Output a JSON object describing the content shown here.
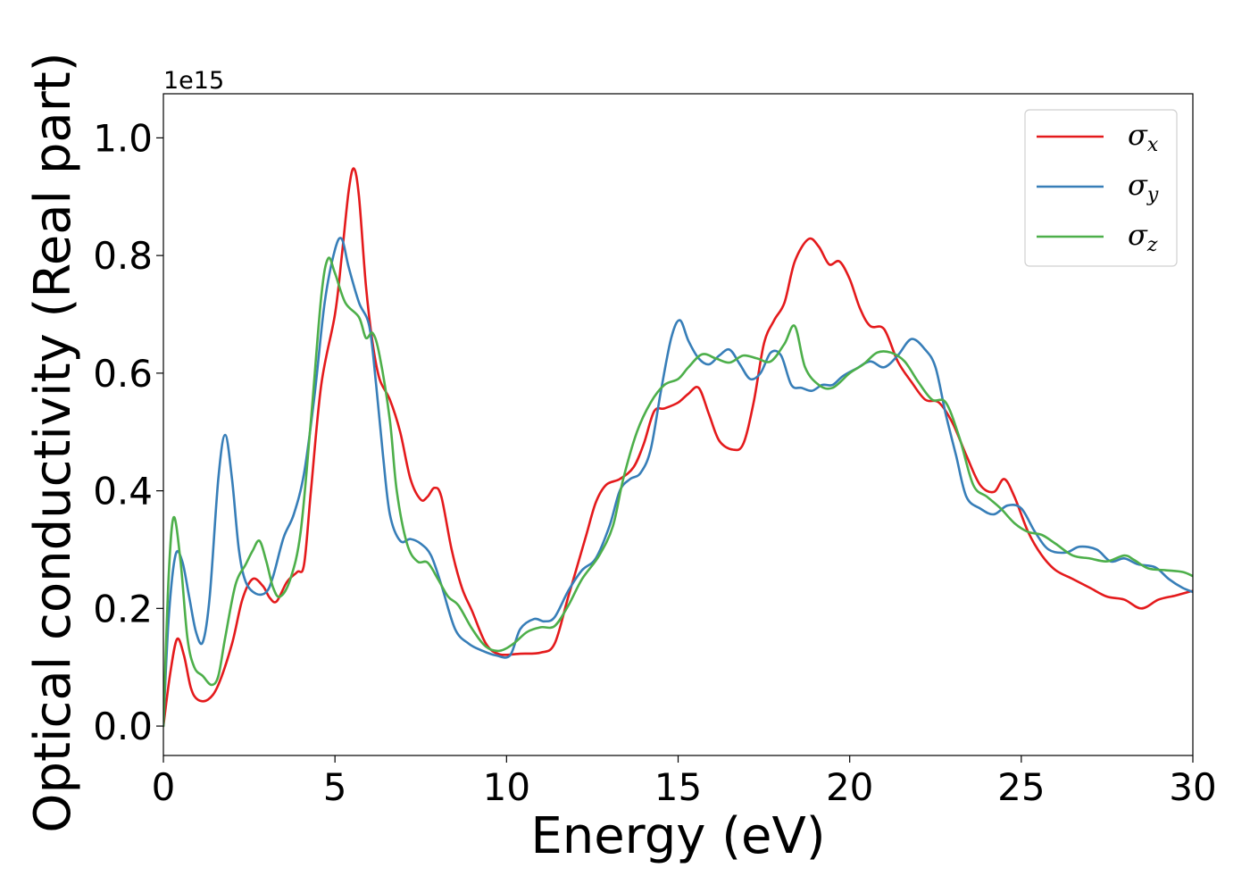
{
  "chart_data": {
    "type": "line",
    "xlabel": "Energy (eV)",
    "ylabel": "Optical conductivity (Real part)",
    "y_offset_label": "1e15",
    "xlim": [
      0,
      30
    ],
    "ylim": [
      -0.05,
      1.075
    ],
    "x_ticks": [
      0,
      5,
      10,
      15,
      20,
      25,
      30
    ],
    "x_tick_labels": [
      "0",
      "5",
      "10",
      "15",
      "20",
      "25",
      "30"
    ],
    "y_ticks": [
      0.0,
      0.2,
      0.4,
      0.6,
      0.8,
      1.0
    ],
    "y_tick_labels": [
      "0.0",
      "0.2",
      "0.4",
      "0.6",
      "0.8",
      "1.0"
    ],
    "grid": false,
    "legend_position": "top-right",
    "series": [
      {
        "name": "σx",
        "symbol": "σ",
        "sub": "x",
        "color": "#e41a1c",
        "points": [
          [
            0,
            0
          ],
          [
            0.2,
            0.09
          ],
          [
            0.4,
            0.148
          ],
          [
            0.6,
            0.12
          ],
          [
            0.8,
            0.065
          ],
          [
            1.0,
            0.045
          ],
          [
            1.3,
            0.045
          ],
          [
            1.6,
            0.07
          ],
          [
            2.0,
            0.14
          ],
          [
            2.3,
            0.215
          ],
          [
            2.6,
            0.25
          ],
          [
            2.9,
            0.238
          ],
          [
            3.1,
            0.218
          ],
          [
            3.3,
            0.212
          ],
          [
            3.6,
            0.245
          ],
          [
            3.9,
            0.262
          ],
          [
            4.1,
            0.275
          ],
          [
            4.3,
            0.4
          ],
          [
            4.6,
            0.58
          ],
          [
            5.0,
            0.7
          ],
          [
            5.2,
            0.8
          ],
          [
            5.4,
            0.91
          ],
          [
            5.55,
            0.948
          ],
          [
            5.7,
            0.9
          ],
          [
            5.9,
            0.75
          ],
          [
            6.1,
            0.65
          ],
          [
            6.3,
            0.59
          ],
          [
            6.6,
            0.555
          ],
          [
            6.9,
            0.5
          ],
          [
            7.2,
            0.42
          ],
          [
            7.5,
            0.385
          ],
          [
            7.7,
            0.39
          ],
          [
            7.9,
            0.405
          ],
          [
            8.1,
            0.39
          ],
          [
            8.4,
            0.3
          ],
          [
            8.7,
            0.235
          ],
          [
            9.0,
            0.195
          ],
          [
            9.4,
            0.14
          ],
          [
            9.8,
            0.122
          ],
          [
            10.4,
            0.123
          ],
          [
            11.0,
            0.125
          ],
          [
            11.4,
            0.14
          ],
          [
            11.8,
            0.22
          ],
          [
            12.3,
            0.32
          ],
          [
            12.6,
            0.38
          ],
          [
            12.9,
            0.41
          ],
          [
            13.3,
            0.42
          ],
          [
            13.7,
            0.44
          ],
          [
            14.0,
            0.48
          ],
          [
            14.3,
            0.535
          ],
          [
            14.6,
            0.54
          ],
          [
            15.0,
            0.55
          ],
          [
            15.3,
            0.565
          ],
          [
            15.6,
            0.575
          ],
          [
            15.9,
            0.53
          ],
          [
            16.2,
            0.485
          ],
          [
            16.6,
            0.47
          ],
          [
            16.9,
            0.48
          ],
          [
            17.2,
            0.55
          ],
          [
            17.5,
            0.65
          ],
          [
            17.8,
            0.69
          ],
          [
            18.1,
            0.72
          ],
          [
            18.4,
            0.79
          ],
          [
            18.8,
            0.828
          ],
          [
            19.1,
            0.815
          ],
          [
            19.4,
            0.785
          ],
          [
            19.7,
            0.79
          ],
          [
            20.0,
            0.76
          ],
          [
            20.3,
            0.71
          ],
          [
            20.6,
            0.68
          ],
          [
            21.0,
            0.675
          ],
          [
            21.4,
            0.62
          ],
          [
            21.8,
            0.585
          ],
          [
            22.2,
            0.555
          ],
          [
            22.6,
            0.55
          ],
          [
            23.0,
            0.515
          ],
          [
            23.4,
            0.46
          ],
          [
            23.8,
            0.41
          ],
          [
            24.2,
            0.398
          ],
          [
            24.5,
            0.42
          ],
          [
            24.8,
            0.39
          ],
          [
            25.2,
            0.33
          ],
          [
            25.6,
            0.29
          ],
          [
            26.0,
            0.265
          ],
          [
            26.5,
            0.25
          ],
          [
            27.0,
            0.235
          ],
          [
            27.5,
            0.22
          ],
          [
            28.0,
            0.215
          ],
          [
            28.5,
            0.2
          ],
          [
            29.0,
            0.215
          ],
          [
            29.5,
            0.222
          ],
          [
            30.0,
            0.23
          ]
        ]
      },
      {
        "name": "σy",
        "symbol": "σ",
        "sub": "y",
        "color": "#377eb8",
        "points": [
          [
            0,
            0
          ],
          [
            0.15,
            0.18
          ],
          [
            0.35,
            0.29
          ],
          [
            0.55,
            0.28
          ],
          [
            0.75,
            0.22
          ],
          [
            0.95,
            0.16
          ],
          [
            1.15,
            0.143
          ],
          [
            1.35,
            0.22
          ],
          [
            1.6,
            0.42
          ],
          [
            1.8,
            0.495
          ],
          [
            2.0,
            0.42
          ],
          [
            2.2,
            0.3
          ],
          [
            2.4,
            0.245
          ],
          [
            2.7,
            0.225
          ],
          [
            3.0,
            0.228
          ],
          [
            3.2,
            0.255
          ],
          [
            3.5,
            0.32
          ],
          [
            3.8,
            0.36
          ],
          [
            4.1,
            0.43
          ],
          [
            4.4,
            0.56
          ],
          [
            4.7,
            0.72
          ],
          [
            5.0,
            0.81
          ],
          [
            5.2,
            0.828
          ],
          [
            5.4,
            0.78
          ],
          [
            5.7,
            0.72
          ],
          [
            6.0,
            0.68
          ],
          [
            6.2,
            0.58
          ],
          [
            6.4,
            0.46
          ],
          [
            6.6,
            0.36
          ],
          [
            6.9,
            0.315
          ],
          [
            7.2,
            0.318
          ],
          [
            7.5,
            0.31
          ],
          [
            7.8,
            0.29
          ],
          [
            8.1,
            0.24
          ],
          [
            8.5,
            0.165
          ],
          [
            8.9,
            0.14
          ],
          [
            9.3,
            0.128
          ],
          [
            9.7,
            0.12
          ],
          [
            10.1,
            0.12
          ],
          [
            10.4,
            0.165
          ],
          [
            10.8,
            0.182
          ],
          [
            11.1,
            0.178
          ],
          [
            11.4,
            0.185
          ],
          [
            11.8,
            0.23
          ],
          [
            12.2,
            0.265
          ],
          [
            12.6,
            0.285
          ],
          [
            13.0,
            0.34
          ],
          [
            13.3,
            0.4
          ],
          [
            13.6,
            0.42
          ],
          [
            13.9,
            0.43
          ],
          [
            14.2,
            0.47
          ],
          [
            14.5,
            0.57
          ],
          [
            14.8,
            0.66
          ],
          [
            15.05,
            0.69
          ],
          [
            15.3,
            0.655
          ],
          [
            15.6,
            0.625
          ],
          [
            15.9,
            0.615
          ],
          [
            16.2,
            0.63
          ],
          [
            16.5,
            0.64
          ],
          [
            16.8,
            0.615
          ],
          [
            17.1,
            0.59
          ],
          [
            17.4,
            0.6
          ],
          [
            17.7,
            0.635
          ],
          [
            18.0,
            0.63
          ],
          [
            18.3,
            0.58
          ],
          [
            18.6,
            0.575
          ],
          [
            18.9,
            0.57
          ],
          [
            19.2,
            0.58
          ],
          [
            19.5,
            0.58
          ],
          [
            19.8,
            0.595
          ],
          [
            20.2,
            0.608
          ],
          [
            20.6,
            0.62
          ],
          [
            21.0,
            0.61
          ],
          [
            21.4,
            0.63
          ],
          [
            21.8,
            0.658
          ],
          [
            22.2,
            0.64
          ],
          [
            22.5,
            0.61
          ],
          [
            22.8,
            0.53
          ],
          [
            23.1,
            0.46
          ],
          [
            23.4,
            0.39
          ],
          [
            23.8,
            0.37
          ],
          [
            24.2,
            0.36
          ],
          [
            24.6,
            0.375
          ],
          [
            25.0,
            0.37
          ],
          [
            25.4,
            0.33
          ],
          [
            25.8,
            0.3
          ],
          [
            26.3,
            0.295
          ],
          [
            26.7,
            0.305
          ],
          [
            27.2,
            0.3
          ],
          [
            27.6,
            0.28
          ],
          [
            28.0,
            0.285
          ],
          [
            28.4,
            0.275
          ],
          [
            28.9,
            0.27
          ],
          [
            29.3,
            0.25
          ],
          [
            29.7,
            0.235
          ],
          [
            30.0,
            0.228
          ]
        ]
      },
      {
        "name": "σz",
        "symbol": "σ",
        "sub": "z",
        "color": "#4daf4a",
        "points": [
          [
            0,
            0
          ],
          [
            0.15,
            0.25
          ],
          [
            0.3,
            0.355
          ],
          [
            0.5,
            0.28
          ],
          [
            0.7,
            0.15
          ],
          [
            0.9,
            0.1
          ],
          [
            1.15,
            0.085
          ],
          [
            1.4,
            0.07
          ],
          [
            1.6,
            0.085
          ],
          [
            1.8,
            0.15
          ],
          [
            2.1,
            0.24
          ],
          [
            2.4,
            0.275
          ],
          [
            2.6,
            0.298
          ],
          [
            2.8,
            0.315
          ],
          [
            3.0,
            0.28
          ],
          [
            3.2,
            0.235
          ],
          [
            3.4,
            0.22
          ],
          [
            3.7,
            0.25
          ],
          [
            4.0,
            0.33
          ],
          [
            4.3,
            0.52
          ],
          [
            4.6,
            0.73
          ],
          [
            4.8,
            0.795
          ],
          [
            5.0,
            0.77
          ],
          [
            5.3,
            0.72
          ],
          [
            5.7,
            0.695
          ],
          [
            5.9,
            0.66
          ],
          [
            6.1,
            0.668
          ],
          [
            6.3,
            0.63
          ],
          [
            6.6,
            0.52
          ],
          [
            6.8,
            0.4
          ],
          [
            7.1,
            0.31
          ],
          [
            7.4,
            0.28
          ],
          [
            7.7,
            0.278
          ],
          [
            8.0,
            0.25
          ],
          [
            8.3,
            0.22
          ],
          [
            8.6,
            0.205
          ],
          [
            9.0,
            0.165
          ],
          [
            9.4,
            0.135
          ],
          [
            9.8,
            0.128
          ],
          [
            10.2,
            0.14
          ],
          [
            10.6,
            0.16
          ],
          [
            11.0,
            0.168
          ],
          [
            11.4,
            0.17
          ],
          [
            11.8,
            0.205
          ],
          [
            12.2,
            0.25
          ],
          [
            12.7,
            0.29
          ],
          [
            13.1,
            0.34
          ],
          [
            13.4,
            0.42
          ],
          [
            13.8,
            0.5
          ],
          [
            14.2,
            0.55
          ],
          [
            14.6,
            0.58
          ],
          [
            15.0,
            0.59
          ],
          [
            15.3,
            0.61
          ],
          [
            15.7,
            0.632
          ],
          [
            16.1,
            0.625
          ],
          [
            16.5,
            0.618
          ],
          [
            16.9,
            0.63
          ],
          [
            17.3,
            0.625
          ],
          [
            17.7,
            0.62
          ],
          [
            18.1,
            0.65
          ],
          [
            18.4,
            0.68
          ],
          [
            18.7,
            0.61
          ],
          [
            19.1,
            0.58
          ],
          [
            19.5,
            0.575
          ],
          [
            20.0,
            0.6
          ],
          [
            20.4,
            0.615
          ],
          [
            20.8,
            0.635
          ],
          [
            21.2,
            0.635
          ],
          [
            21.6,
            0.62
          ],
          [
            22.0,
            0.585
          ],
          [
            22.4,
            0.555
          ],
          [
            22.8,
            0.55
          ],
          [
            23.2,
            0.49
          ],
          [
            23.6,
            0.41
          ],
          [
            24.0,
            0.39
          ],
          [
            24.4,
            0.37
          ],
          [
            24.8,
            0.345
          ],
          [
            25.2,
            0.33
          ],
          [
            25.6,
            0.325
          ],
          [
            26.0,
            0.31
          ],
          [
            26.5,
            0.29
          ],
          [
            27.0,
            0.285
          ],
          [
            27.5,
            0.28
          ],
          [
            28.0,
            0.29
          ],
          [
            28.3,
            0.282
          ],
          [
            28.7,
            0.268
          ],
          [
            29.2,
            0.265
          ],
          [
            29.7,
            0.262
          ],
          [
            30.0,
            0.255
          ]
        ]
      }
    ]
  }
}
